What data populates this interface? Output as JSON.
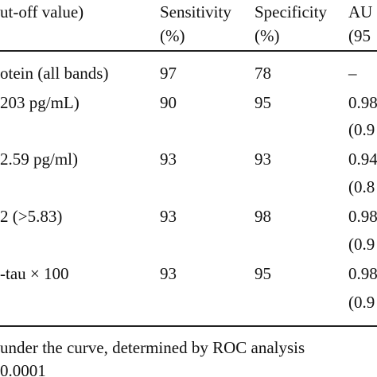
{
  "table": {
    "header": {
      "col1": "ut-off value)",
      "col2_line1": "Sensitivity",
      "col2_line2": "(%)",
      "col3_line1": "Specificity",
      "col3_line2": "(%)",
      "col4_line1": "AU",
      "col4_line2": "(95"
    },
    "rows": [
      {
        "label": "otein (all bands)",
        "sensitivity": "97",
        "specificity": "78",
        "auc": "–",
        "ci": ""
      },
      {
        "label": "203 pg/mL)",
        "sensitivity": "90",
        "specificity": "95",
        "auc": "0.98",
        "ci": "(0.9"
      },
      {
        "label": "2.59 pg/ml)",
        "sensitivity": "93",
        "specificity": "93",
        "auc": "0.94",
        "ci": "(0.8"
      },
      {
        "label": "2 (>5.83)",
        "sensitivity": "93",
        "specificity": "98",
        "auc": "0.98",
        "ci": "(0.9"
      },
      {
        "label": "-tau × 100",
        "sensitivity": "93",
        "specificity": "95",
        "auc": "0.98",
        "ci": "(0.9"
      }
    ]
  },
  "footnotes": {
    "line1": "under the curve, determined by ROC analysis",
    "line2": "0.0001"
  }
}
